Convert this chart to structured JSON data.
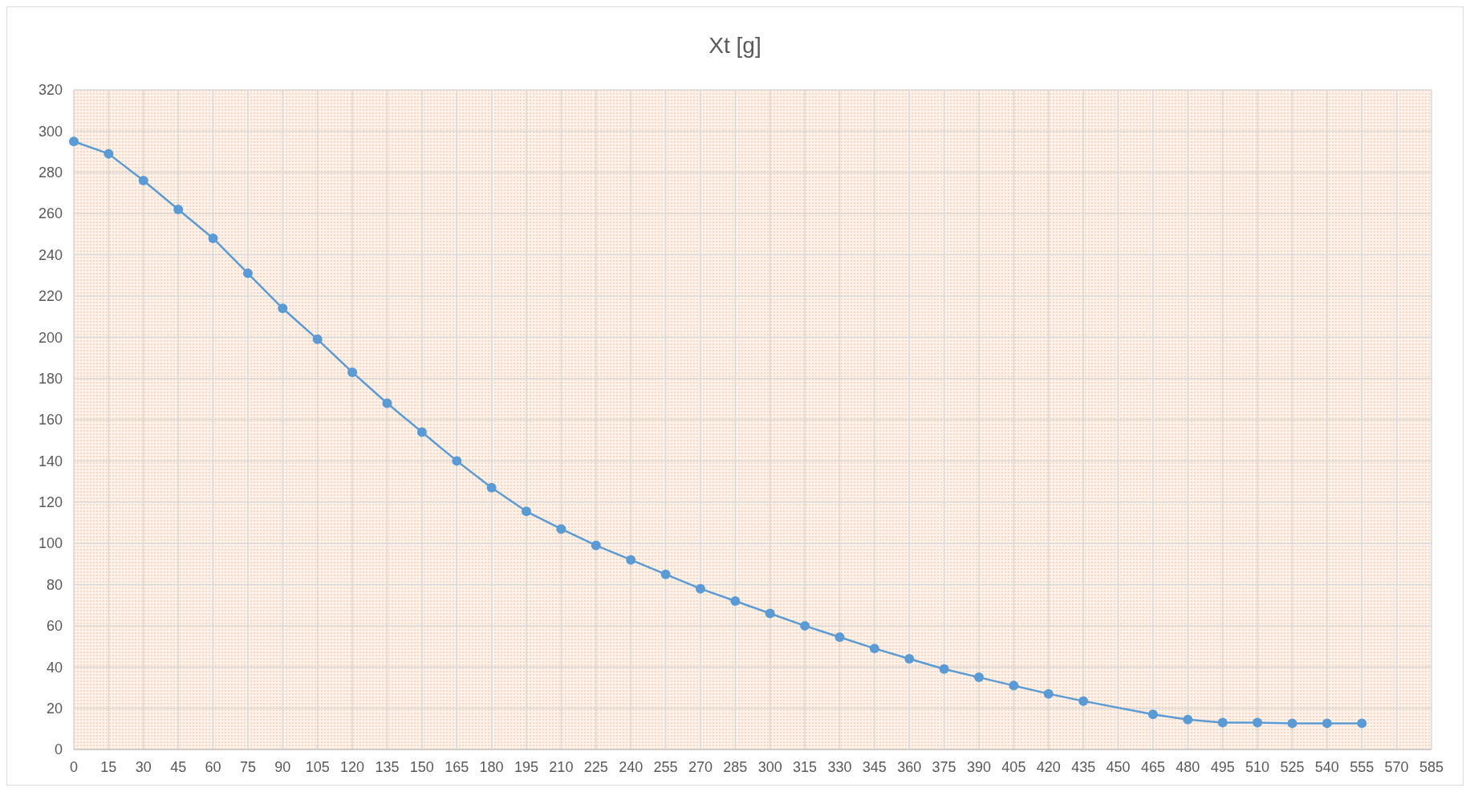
{
  "chart_data": {
    "type": "line",
    "title": "Xt [g]",
    "series": [
      {
        "color": "#5b9bd5",
        "x": [
          0,
          15,
          30,
          45,
          60,
          75,
          90,
          105,
          120,
          135,
          150,
          165,
          180,
          195,
          210,
          225,
          240,
          255,
          270,
          285,
          300,
          315,
          330,
          345,
          360,
          375,
          390,
          405,
          420,
          435,
          465,
          480,
          495,
          510,
          525,
          540,
          555
        ],
        "values": [
          295,
          289,
          276,
          262,
          248,
          231,
          214,
          199,
          183,
          168,
          154,
          140,
          127,
          115.5,
          107,
          99,
          92,
          85,
          78,
          72,
          66,
          60,
          54.5,
          49,
          44,
          39,
          35,
          31,
          27,
          23.5,
          17,
          14.5,
          13,
          13,
          12.7,
          12.7,
          12.7
        ]
      }
    ],
    "xlim": [
      0,
      585
    ],
    "xticks": [
      0,
      15,
      30,
      45,
      60,
      75,
      90,
      105,
      120,
      135,
      150,
      165,
      180,
      195,
      210,
      225,
      240,
      255,
      270,
      285,
      300,
      315,
      330,
      345,
      360,
      375,
      390,
      405,
      420,
      435,
      450,
      465,
      480,
      495,
      510,
      525,
      540,
      555,
      570,
      585
    ],
    "ylim": [
      0,
      320
    ],
    "yticks": [
      0,
      20,
      40,
      60,
      80,
      100,
      120,
      140,
      160,
      180,
      200,
      220,
      240,
      260,
      280,
      300,
      320
    ],
    "grid": true,
    "marker": "circle",
    "line_style": "solid"
  }
}
